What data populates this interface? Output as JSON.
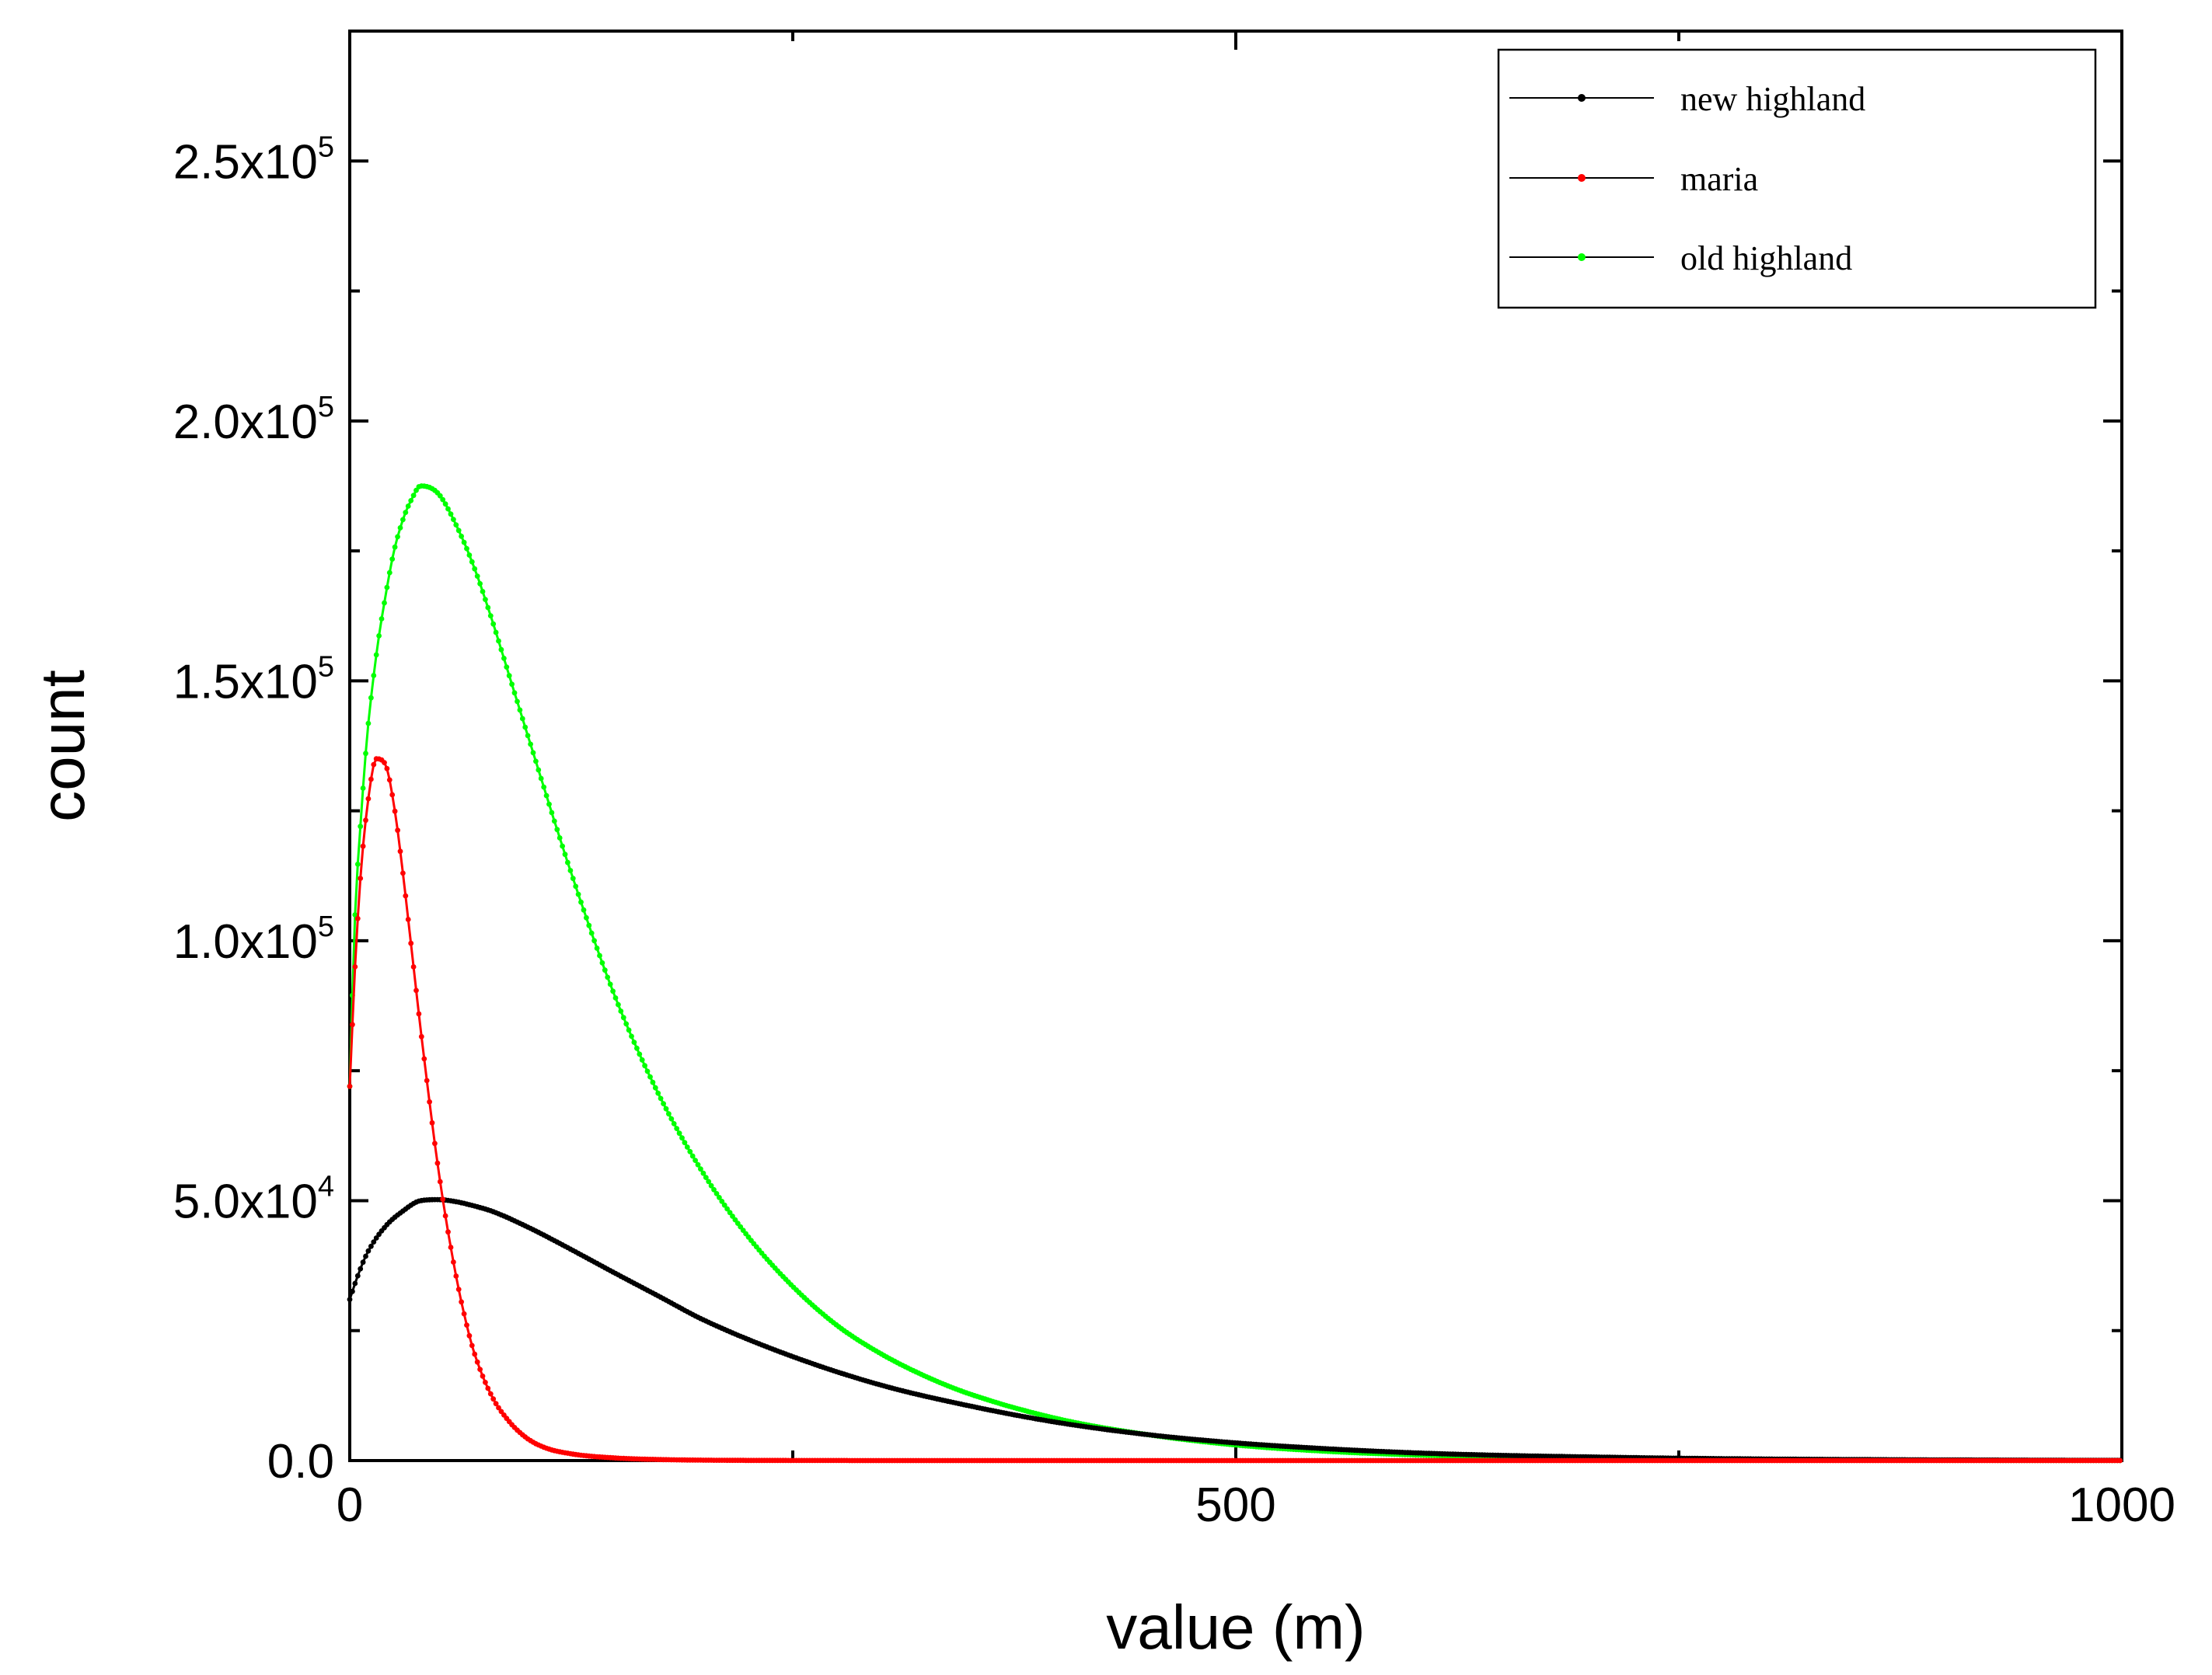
{
  "chart_data": {
    "type": "line",
    "title": "",
    "xlabel": "value (m)",
    "ylabel": "count",
    "xlim": [
      0,
      1000
    ],
    "ylim": [
      0,
      275000
    ],
    "x_ticks": [
      {
        "value": 0,
        "label": "0"
      },
      {
        "value": 500,
        "label": "500"
      },
      {
        "value": 1000,
        "label": "1000"
      }
    ],
    "x_minor_ticks": [
      250,
      750
    ],
    "y_ticks": [
      {
        "value": 0,
        "mantissa": "0.0",
        "exponent": ""
      },
      {
        "value": 50000,
        "mantissa": "5.0x10",
        "exponent": "4"
      },
      {
        "value": 100000,
        "mantissa": "1.0x10",
        "exponent": "5"
      },
      {
        "value": 150000,
        "mantissa": "1.5x10",
        "exponent": "5"
      },
      {
        "value": 200000,
        "mantissa": "2.0x10",
        "exponent": "5"
      },
      {
        "value": 250000,
        "mantissa": "2.5x10",
        "exponent": "5"
      }
    ],
    "y_minor_ticks": [
      25000,
      75000,
      125000,
      175000,
      225000
    ],
    "legend_position": "top-right",
    "series": [
      {
        "name": "new highland",
        "color": "#000000",
        "x": [
          0,
          5,
          10,
          20,
          30,
          40,
          50,
          60,
          70,
          80,
          100,
          120,
          150,
          175,
          200,
          250,
          300,
          350,
          400,
          450,
          500,
          550,
          600,
          650,
          700,
          750,
          800,
          850,
          900,
          950,
          1000
        ],
        "y": [
          31000,
          36000,
          40000,
          45000,
          48000,
          50000,
          50200,
          49800,
          49000,
          48000,
          45000,
          41500,
          36000,
          31500,
          27000,
          20000,
          14500,
          10500,
          7300,
          5000,
          3400,
          2300,
          1500,
          1000,
          700,
          450,
          300,
          200,
          130,
          80,
          50
        ]
      },
      {
        "name": "maria",
        "color": "#ff0000",
        "x": [
          0,
          3,
          6,
          10,
          15,
          20,
          25,
          30,
          35,
          40,
          45,
          50,
          55,
          60,
          65,
          70,
          80,
          90,
          100,
          110,
          125,
          150,
          175,
          200,
          250,
          300,
          400,
          500,
          600,
          700,
          800,
          900,
          1000
        ],
        "y": [
          72000,
          95000,
          112000,
          126000,
          135000,
          134000,
          126000,
          113000,
          98000,
          83000,
          69000,
          56000,
          45000,
          35500,
          27500,
          21000,
          12500,
          7500,
          4300,
          2500,
          1300,
          500,
          200,
          80,
          20,
          5,
          0,
          0,
          0,
          0,
          0,
          0,
          0
        ]
      },
      {
        "name": "old highland",
        "color": "#00ff00",
        "x": [
          0,
          3,
          6,
          10,
          15,
          20,
          25,
          30,
          35,
          40,
          50,
          60,
          70,
          80,
          90,
          100,
          125,
          150,
          175,
          200,
          225,
          250,
          275,
          300,
          325,
          350,
          400,
          450,
          500,
          550,
          600,
          650,
          700,
          750,
          800,
          850,
          900,
          950,
          1000
        ],
        "y": [
          72000,
          105000,
          122000,
          140000,
          155000,
          166000,
          175000,
          181000,
          185000,
          187500,
          186000,
          180000,
          172000,
          162000,
          151000,
          140000,
          113000,
          89000,
          70000,
          55000,
          43000,
          33500,
          26000,
          20500,
          16200,
          12800,
          8000,
          5000,
          3000,
          1800,
          1100,
          650,
          380,
          230,
          140,
          80,
          50,
          30,
          20
        ]
      }
    ]
  }
}
